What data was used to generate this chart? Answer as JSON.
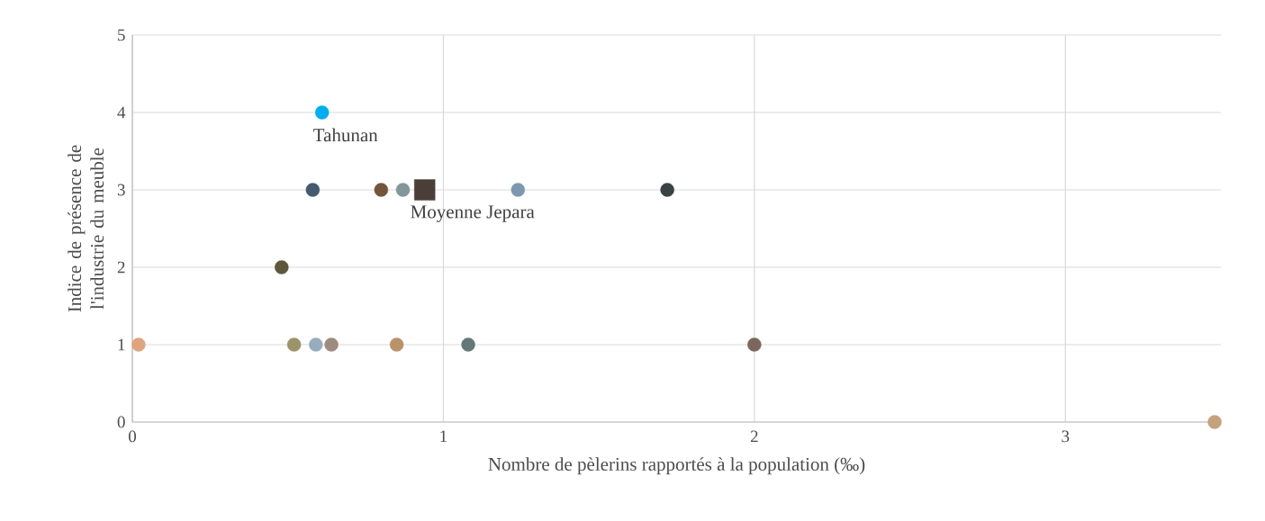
{
  "chart_data": {
    "type": "scatter",
    "xlabel": "Nombre de pèlerins rapportés à la population (‰)",
    "ylabel": "Indice de présence de l'industrie du meuble",
    "xlim": [
      0,
      3.5
    ],
    "ylim": [
      0,
      5
    ],
    "xticks": [
      0,
      1,
      2,
      3
    ],
    "yticks": [
      0,
      1,
      2,
      3,
      4,
      5
    ],
    "grid": true,
    "marker": "circle",
    "series": [
      {
        "x": [
          0.02,
          0.52,
          0.59,
          0.64,
          0.85,
          1.08,
          2.0,
          3.48,
          0.48,
          0.58,
          0.8,
          0.87,
          1.24,
          1.72,
          0.61
        ],
        "values": [
          1,
          1,
          1,
          1,
          1,
          1,
          1,
          0,
          2,
          3,
          3,
          3,
          3,
          3,
          4
        ],
        "colors": [
          "#dfa57e",
          "#9c936b",
          "#98acbf",
          "#9d8a80",
          "#b99268",
          "#64787a",
          "#7b675b",
          "#c4a27c",
          "#5e573c",
          "#445a70",
          "#74553a",
          "#83979a",
          "#7d98af",
          "#3a4244",
          "#00adee"
        ]
      },
      {
        "x": [
          0.94
        ],
        "values": [
          3
        ],
        "color": "#4a3f38",
        "marker": "square"
      }
    ],
    "annotations": [
      {
        "text": "Tahunan",
        "x": 0.61,
        "y": 4
      },
      {
        "text": "Moyenne Jepara",
        "x": 0.94,
        "y": 3
      }
    ]
  }
}
